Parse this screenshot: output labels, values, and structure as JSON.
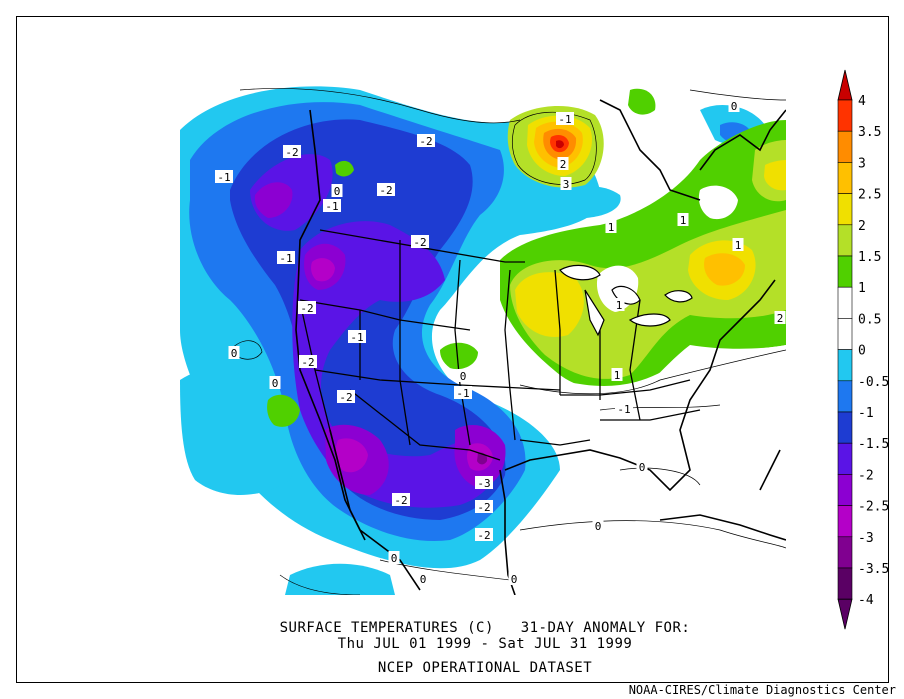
{
  "title": {
    "line1": "SURFACE TEMPERATURES (C)   31-DAY ANOMALY FOR:",
    "line2": "Thu JUL 01 1999 - Sat JUL 31 1999",
    "line3": "NCEP OPERATIONAL DATASET"
  },
  "credit": "NOAA-CIRES/Climate Diagnostics Center",
  "legend": {
    "levels": [
      {
        "label": "4",
        "color": "#c80000"
      },
      {
        "label": "3.5",
        "color": "#ff3300"
      },
      {
        "label": "3",
        "color": "#ff8c00"
      },
      {
        "label": "2.5",
        "color": "#ffc000"
      },
      {
        "label": "2",
        "color": "#f0e000"
      },
      {
        "label": "1.5",
        "color": "#b4e028"
      },
      {
        "label": "1",
        "color": "#50d000"
      },
      {
        "label": "0.5",
        "color": "#ffffff"
      },
      {
        "label": "0",
        "color": "#ffffff"
      },
      {
        "label": "-0.5",
        "color": "#22c8f0"
      },
      {
        "label": "-1",
        "color": "#1e78f0"
      },
      {
        "label": "-1.5",
        "color": "#1e3cd2"
      },
      {
        "label": "-2",
        "color": "#5a14e6"
      },
      {
        "label": "-2.5",
        "color": "#8c00d2"
      },
      {
        "label": "-3",
        "color": "#b400c8"
      },
      {
        "label": "-3.5",
        "color": "#800090"
      },
      {
        "label": "-4",
        "color": "#5a0064"
      }
    ]
  },
  "contour_labels": [
    {
      "text": "-2"
    },
    {
      "text": "-1"
    },
    {
      "text": "-2"
    },
    {
      "text": "-2"
    },
    {
      "text": "-1"
    },
    {
      "text": "-2"
    },
    {
      "text": "-2"
    },
    {
      "text": "-1"
    },
    {
      "text": "-2"
    },
    {
      "text": "-1"
    },
    {
      "text": "-2"
    },
    {
      "text": "-2"
    },
    {
      "text": "-1"
    },
    {
      "text": "-3"
    },
    {
      "text": "-2"
    },
    {
      "text": "-2"
    },
    {
      "text": "-1"
    },
    {
      "text": "2"
    },
    {
      "text": "3"
    },
    {
      "text": "1"
    },
    {
      "text": "1"
    },
    {
      "text": "1"
    },
    {
      "text": "2"
    },
    {
      "text": "1"
    },
    {
      "text": "1"
    },
    {
      "text": "0"
    },
    {
      "text": "0"
    },
    {
      "text": "0"
    },
    {
      "text": "0"
    },
    {
      "text": "0"
    },
    {
      "text": "0"
    },
    {
      "text": "0"
    },
    {
      "text": "0"
    },
    {
      "text": "0"
    },
    {
      "text": "0"
    },
    {
      "text": "-1"
    }
  ]
}
